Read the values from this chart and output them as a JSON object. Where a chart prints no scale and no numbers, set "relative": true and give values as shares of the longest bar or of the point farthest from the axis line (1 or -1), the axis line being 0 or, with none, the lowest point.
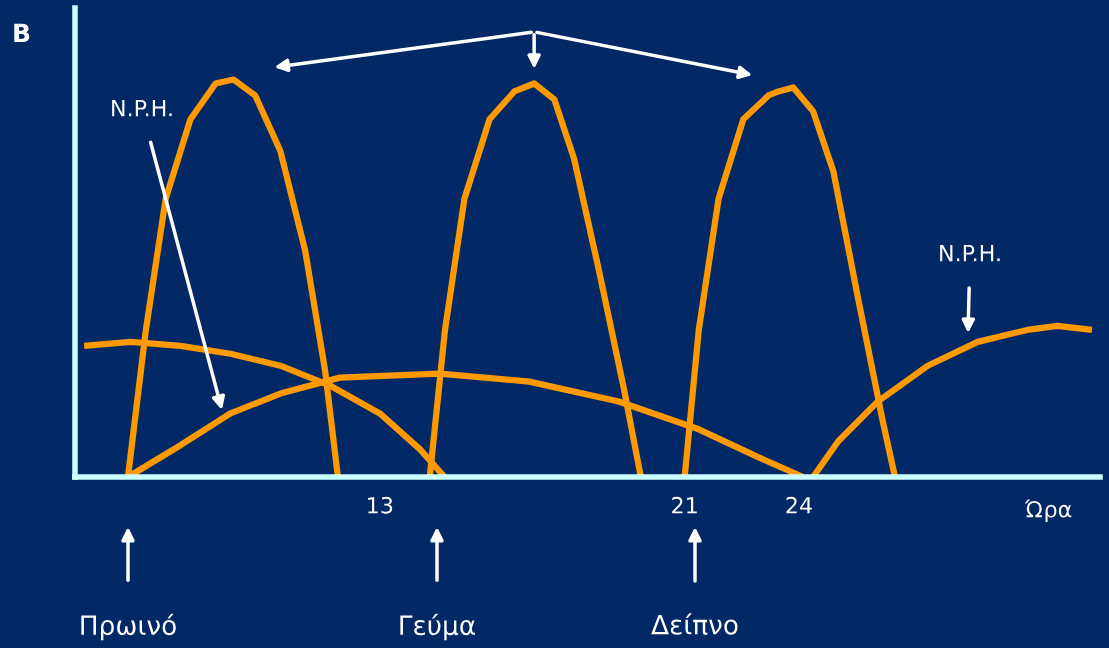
{
  "chart_data": {
    "type": "line",
    "relative": true,
    "title": "B",
    "xlabel": "Ώρα",
    "xlim": [
      5,
      31.9
    ],
    "xticks": [
      13,
      21,
      24
    ],
    "tick_labels": "x",
    "grid": false,
    "marker": "none",
    "line_style": "solid",
    "series": [
      {
        "color": "#ff9900",
        "x": [
          6.39,
          6.86,
          7.38,
          8.03,
          8.69,
          9.16,
          9.73,
          10.39,
          11.04,
          11.56,
          11.9
        ],
        "values": [
          0,
          0.37,
          0.7,
          0.9,
          0.99,
          1.0,
          0.96,
          0.82,
          0.57,
          0.27,
          0
        ]
      },
      {
        "color": "#ff9900",
        "x": [
          14.31,
          14.71,
          15.22,
          15.88,
          16.53,
          17.05,
          17.58,
          18.1,
          18.75,
          19.41,
          19.85
        ],
        "values": [
          0,
          0.37,
          0.7,
          0.9,
          0.97,
          0.99,
          0.95,
          0.8,
          0.52,
          0.22,
          0
        ]
      },
      {
        "color": "#ff9900",
        "x": [
          21.0,
          21.37,
          21.89,
          22.54,
          23.2,
          23.46,
          23.85,
          24.37,
          24.9,
          25.55,
          26.2,
          26.52
        ],
        "values": [
          0,
          0.37,
          0.7,
          0.9,
          0.96,
          0.97,
          0.98,
          0.92,
          0.77,
          0.45,
          0.14,
          0
        ]
      },
      {
        "color": "#ff9900",
        "x": [
          5.24,
          6.46,
          7.77,
          9.08,
          10.39,
          11.69,
          13.0,
          14.05,
          14.7
        ],
        "values": [
          0.33,
          0.34,
          0.33,
          0.31,
          0.28,
          0.23,
          0.16,
          0.07,
          0
        ]
      },
      {
        "color": "#ff9900",
        "x": [
          6.39,
          7.77,
          9.08,
          10.39,
          11.95,
          14.57,
          16.92,
          19.27,
          21.37,
          22.93,
          24.11
        ],
        "values": [
          0,
          0.08,
          0.16,
          0.21,
          0.25,
          0.26,
          0.24,
          0.19,
          0.12,
          0.05,
          0
        ]
      },
      {
        "color": "#ff9900",
        "x": [
          24.37,
          25.03,
          26.07,
          27.38,
          28.69,
          29.99,
          30.78,
          31.69
        ],
        "values": [
          0,
          0.09,
          0.19,
          0.28,
          0.34,
          0.37,
          0.38,
          0.37
        ]
      }
    ],
    "annotations": [
      "N.P.H.",
      "N.P.H.",
      "Πρωινό",
      "Γεύμα",
      "Δείπνο"
    ]
  }
}
